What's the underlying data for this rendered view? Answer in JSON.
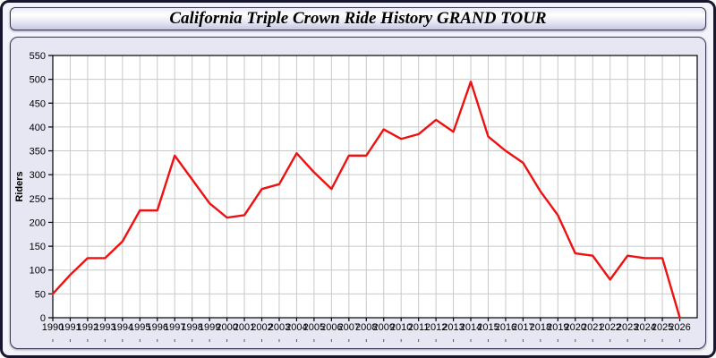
{
  "window": {
    "title": "California Triple Crown Ride History GRAND TOUR"
  },
  "chart_data": {
    "type": "line",
    "title": "California Triple Crown Ride History GRAND TOUR",
    "xlabel": "",
    "ylabel": "Riders",
    "x": [
      1990,
      1991,
      1992,
      1993,
      1994,
      1995,
      1996,
      1997,
      1998,
      1999,
      2000,
      2001,
      2002,
      2003,
      2004,
      2005,
      2006,
      2007,
      2008,
      2009,
      2010,
      2011,
      2012,
      2013,
      2014,
      2015,
      2016,
      2017,
      2018,
      2019,
      2020,
      2021,
      2022,
      2023,
      2024,
      2025,
      2026
    ],
    "series": [
      {
        "name": "Riders",
        "values": [
          50,
          90,
          125,
          125,
          160,
          225,
          225,
          340,
          290,
          240,
          210,
          215,
          270,
          280,
          345,
          305,
          270,
          340,
          340,
          395,
          375,
          385,
          415,
          390,
          495,
          380,
          350,
          325,
          265,
          215,
          135,
          130,
          80,
          130,
          125,
          125,
          0
        ]
      }
    ],
    "ylim": [
      0,
      550
    ],
    "ytick_step": 50,
    "grid": true,
    "legend": "none",
    "line_color": "#ee1111",
    "grid_color": "#c9c9c9",
    "plot_bg": "#ffffff",
    "panel_bg": "#e7e7f4"
  }
}
